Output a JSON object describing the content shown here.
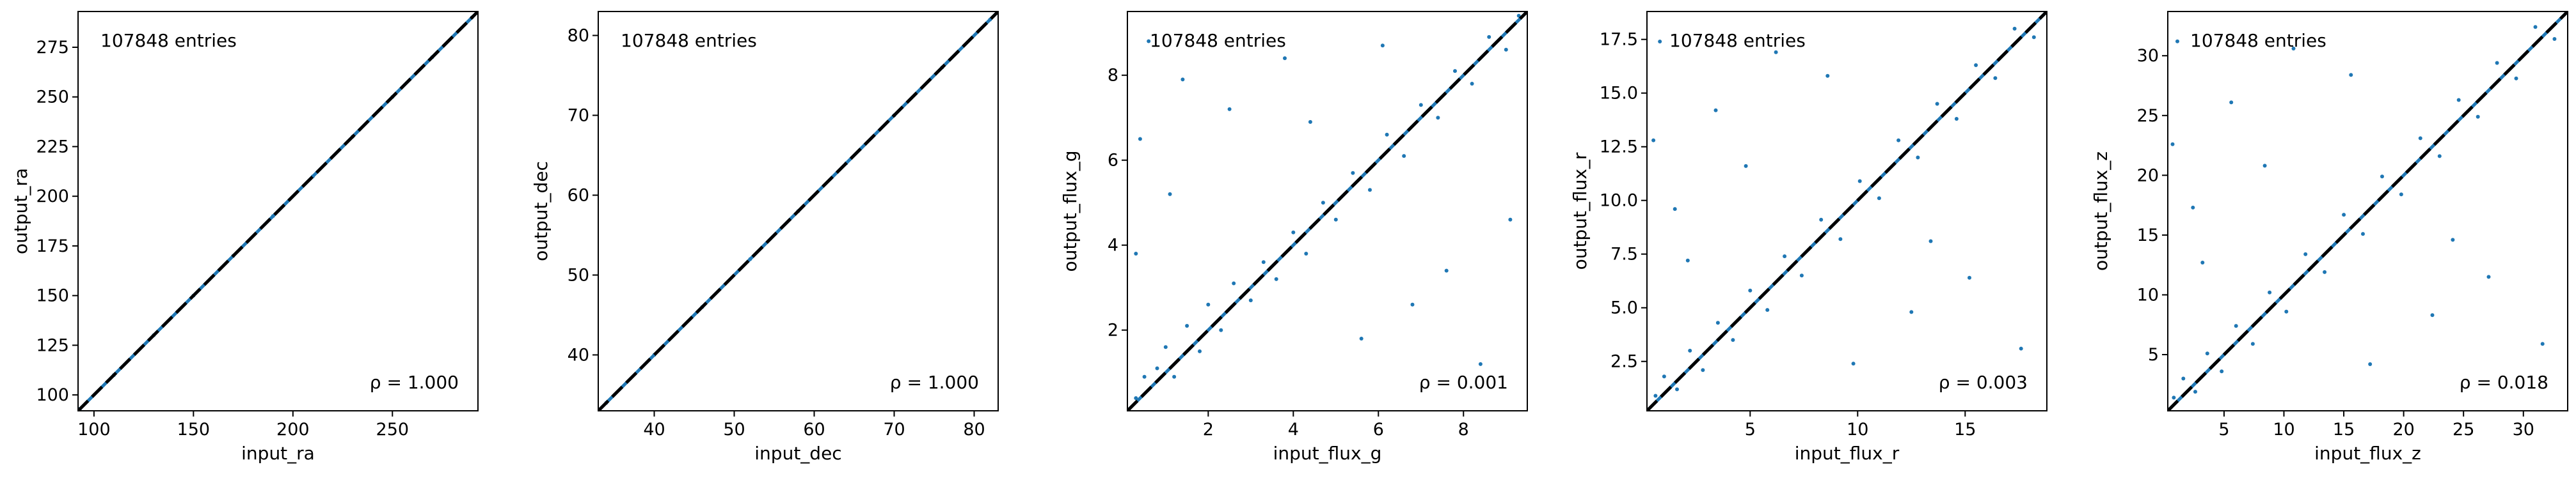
{
  "chart_data": [
    {
      "type": "scatter",
      "xlabel": "input_ra",
      "ylabel": "output_ra",
      "entries_label": "107848 entries",
      "rho_label": "ρ = 1.000",
      "xlim": [
        92,
        293
      ],
      "ylim": [
        92,
        293
      ],
      "xticks": [
        100,
        150,
        200,
        250
      ],
      "yticks": [
        100,
        125,
        150,
        175,
        200,
        225,
        250,
        275
      ],
      "tick_labels_x": [
        "100",
        "150",
        "200",
        "250"
      ],
      "tick_labels_y": [
        "100",
        "125",
        "150",
        "175",
        "200",
        "225",
        "250",
        "275"
      ],
      "reference_line": "y = x",
      "point_color": "#1f77b4",
      "points": [
        [
          93,
          93
        ],
        [
          110,
          110
        ],
        [
          130,
          130
        ],
        [
          150,
          150
        ],
        [
          170,
          170
        ],
        [
          190,
          190
        ],
        [
          210,
          210
        ],
        [
          230,
          230
        ],
        [
          250,
          250
        ],
        [
          270,
          270
        ],
        [
          290,
          290
        ]
      ]
    },
    {
      "type": "scatter",
      "xlabel": "input_dec",
      "ylabel": "output_dec",
      "entries_label": "107848 entries",
      "rho_label": "ρ = 1.000",
      "xlim": [
        33,
        83
      ],
      "ylim": [
        33,
        83
      ],
      "xticks": [
        40,
        50,
        60,
        70,
        80
      ],
      "yticks": [
        40,
        50,
        60,
        70,
        80
      ],
      "tick_labels_x": [
        "40",
        "50",
        "60",
        "70",
        "80"
      ],
      "tick_labels_y": [
        "40",
        "50",
        "60",
        "70",
        "80"
      ],
      "reference_line": "y = x",
      "point_color": "#1f77b4",
      "points": [
        [
          34,
          34
        ],
        [
          40,
          40
        ],
        [
          46,
          46
        ],
        [
          52,
          52
        ],
        [
          58,
          58
        ],
        [
          64,
          64
        ],
        [
          70,
          70
        ],
        [
          76,
          76
        ],
        [
          82,
          82
        ]
      ]
    },
    {
      "type": "scatter",
      "xlabel": "input_flux_g",
      "ylabel": "output_flux_g",
      "entries_label": "107848 entries",
      "rho_label": "ρ = 0.001",
      "xlim": [
        0.1,
        9.5
      ],
      "ylim": [
        0.1,
        9.5
      ],
      "xticks": [
        2,
        4,
        6,
        8
      ],
      "yticks": [
        2,
        4,
        6,
        8
      ],
      "tick_labels_x": [
        "2",
        "4",
        "6",
        "8"
      ],
      "tick_labels_y": [
        "2",
        "4",
        "6",
        "8"
      ],
      "reference_line": "y = x",
      "point_color": "#1f77b4",
      "points": [
        [
          0.3,
          0.4
        ],
        [
          0.5,
          0.9
        ],
        [
          0.8,
          1.1
        ],
        [
          1.0,
          1.6
        ],
        [
          1.2,
          0.9
        ],
        [
          1.5,
          2.1
        ],
        [
          1.8,
          1.5
        ],
        [
          2.0,
          2.6
        ],
        [
          2.3,
          2.0
        ],
        [
          2.6,
          3.1
        ],
        [
          3.0,
          2.7
        ],
        [
          3.3,
          3.6
        ],
        [
          3.6,
          3.2
        ],
        [
          4.0,
          4.3
        ],
        [
          4.3,
          3.8
        ],
        [
          4.7,
          5.0
        ],
        [
          5.0,
          4.6
        ],
        [
          5.4,
          5.7
        ],
        [
          5.8,
          5.3
        ],
        [
          6.2,
          6.6
        ],
        [
          6.6,
          6.1
        ],
        [
          7.0,
          7.3
        ],
        [
          7.4,
          7.0
        ],
        [
          7.8,
          8.1
        ],
        [
          8.2,
          7.8
        ],
        [
          8.6,
          8.9
        ],
        [
          9.0,
          8.6
        ],
        [
          9.3,
          9.4
        ],
        [
          0.4,
          6.5
        ],
        [
          0.6,
          8.8
        ],
        [
          1.1,
          5.2
        ],
        [
          2.5,
          7.2
        ],
        [
          3.8,
          8.4
        ],
        [
          5.6,
          1.8
        ],
        [
          6.8,
          2.6
        ],
        [
          7.6,
          3.4
        ],
        [
          8.4,
          1.2
        ],
        [
          9.1,
          4.6
        ],
        [
          0.3,
          3.8
        ],
        [
          1.4,
          7.9
        ],
        [
          4.4,
          6.9
        ],
        [
          6.1,
          8.7
        ]
      ]
    },
    {
      "type": "scatter",
      "xlabel": "input_flux_r",
      "ylabel": "output_flux_r",
      "entries_label": "107848 entries",
      "rho_label": "ρ = 0.003",
      "xlim": [
        0.2,
        18.8
      ],
      "ylim": [
        0.2,
        18.8
      ],
      "xticks": [
        5,
        10,
        15
      ],
      "yticks": [
        2.5,
        5.0,
        7.5,
        10.0,
        12.5,
        15.0,
        17.5
      ],
      "tick_labels_x": [
        "5",
        "10",
        "15"
      ],
      "tick_labels_y": [
        "2.5",
        "5.0",
        "7.5",
        "10.0",
        "12.5",
        "15.0",
        "17.5"
      ],
      "reference_line": "y = x",
      "point_color": "#1f77b4",
      "points": [
        [
          0.6,
          0.9
        ],
        [
          1.0,
          1.8
        ],
        [
          1.6,
          1.2
        ],
        [
          2.2,
          3.0
        ],
        [
          2.8,
          2.1
        ],
        [
          3.5,
          4.3
        ],
        [
          4.2,
          3.5
        ],
        [
          5.0,
          5.8
        ],
        [
          5.8,
          4.9
        ],
        [
          6.6,
          7.4
        ],
        [
          7.4,
          6.5
        ],
        [
          8.3,
          9.1
        ],
        [
          9.2,
          8.2
        ],
        [
          10.1,
          10.9
        ],
        [
          11.0,
          10.1
        ],
        [
          11.9,
          12.8
        ],
        [
          12.8,
          12.0
        ],
        [
          13.7,
          14.5
        ],
        [
          14.6,
          13.8
        ],
        [
          15.5,
          16.3
        ],
        [
          16.4,
          15.7
        ],
        [
          17.3,
          18.0
        ],
        [
          18.2,
          17.6
        ],
        [
          0.5,
          12.8
        ],
        [
          0.8,
          17.4
        ],
        [
          1.5,
          9.6
        ],
        [
          3.4,
          14.2
        ],
        [
          6.2,
          16.9
        ],
        [
          9.8,
          2.4
        ],
        [
          12.5,
          4.8
        ],
        [
          15.2,
          6.4
        ],
        [
          17.6,
          3.1
        ],
        [
          2.1,
          7.2
        ],
        [
          4.8,
          11.6
        ],
        [
          8.6,
          15.8
        ],
        [
          13.4,
          8.1
        ]
      ]
    },
    {
      "type": "scatter",
      "xlabel": "input_flux_z",
      "ylabel": "output_flux_z",
      "entries_label": "107848 entries",
      "rho_label": "ρ = 0.018",
      "xlim": [
        0.3,
        33.7
      ],
      "ylim": [
        0.3,
        33.7
      ],
      "xticks": [
        5,
        10,
        15,
        20,
        25,
        30
      ],
      "yticks": [
        5,
        10,
        15,
        20,
        25,
        30
      ],
      "tick_labels_x": [
        "5",
        "10",
        "15",
        "20",
        "25",
        "30"
      ],
      "tick_labels_y": [
        "5",
        "10",
        "15",
        "20",
        "25",
        "30"
      ],
      "reference_line": "y = x",
      "point_color": "#1f77b4",
      "points": [
        [
          0.8,
          1.4
        ],
        [
          1.6,
          3.0
        ],
        [
          2.6,
          1.9
        ],
        [
          3.6,
          5.1
        ],
        [
          4.8,
          3.6
        ],
        [
          6.0,
          7.4
        ],
        [
          7.4,
          5.9
        ],
        [
          8.8,
          10.2
        ],
        [
          10.2,
          8.6
        ],
        [
          11.8,
          13.4
        ],
        [
          13.4,
          11.9
        ],
        [
          15.0,
          16.7
        ],
        [
          16.6,
          15.1
        ],
        [
          18.2,
          19.9
        ],
        [
          19.8,
          18.4
        ],
        [
          21.4,
          23.1
        ],
        [
          23.0,
          21.6
        ],
        [
          24.6,
          26.3
        ],
        [
          26.2,
          24.9
        ],
        [
          27.8,
          29.4
        ],
        [
          29.4,
          28.1
        ],
        [
          31.0,
          32.4
        ],
        [
          32.6,
          31.4
        ],
        [
          0.7,
          22.6
        ],
        [
          1.1,
          31.2
        ],
        [
          2.4,
          17.3
        ],
        [
          5.6,
          26.1
        ],
        [
          10.8,
          30.6
        ],
        [
          17.2,
          4.2
        ],
        [
          22.4,
          8.3
        ],
        [
          27.1,
          11.5
        ],
        [
          31.6,
          5.9
        ],
        [
          3.2,
          12.7
        ],
        [
          8.4,
          20.8
        ],
        [
          15.6,
          28.4
        ],
        [
          24.1,
          14.6
        ]
      ]
    }
  ]
}
